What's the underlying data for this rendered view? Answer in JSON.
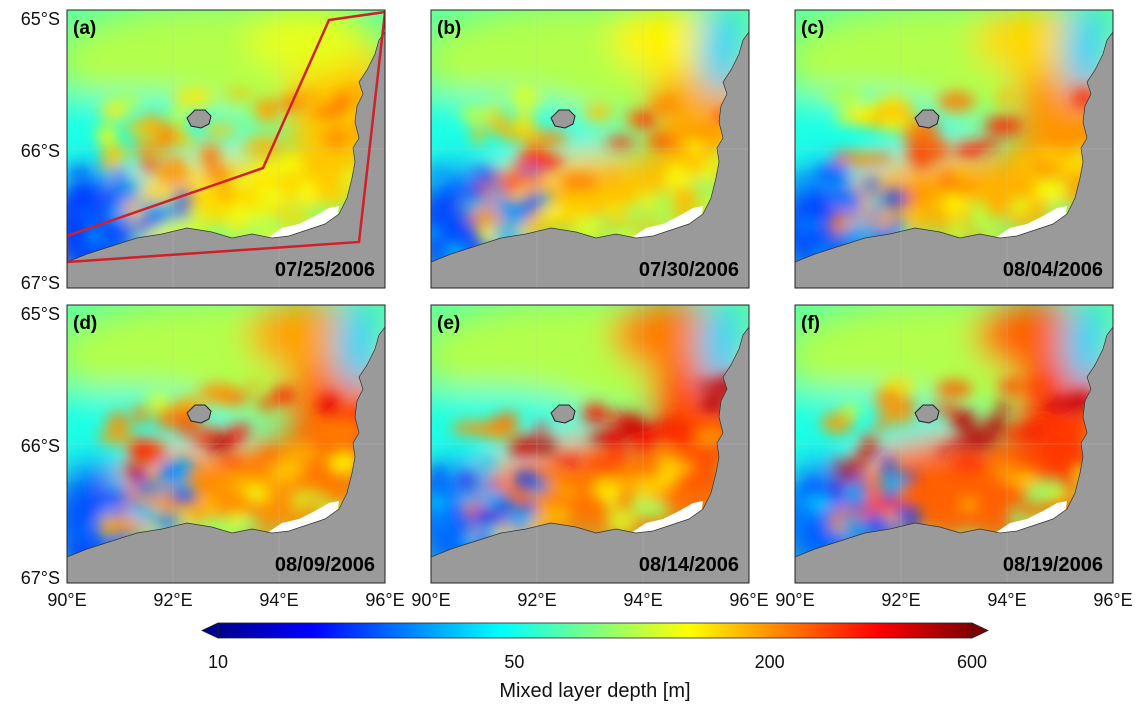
{
  "panels": [
    {
      "letter": "(a)",
      "date": "07/25/2006",
      "stage": 0.0,
      "show_region": true
    },
    {
      "letter": "(b)",
      "date": "07/30/2006",
      "stage": 0.2,
      "show_region": false
    },
    {
      "letter": "(c)",
      "date": "08/04/2006",
      "stage": 0.35,
      "show_region": false
    },
    {
      "letter": "(d)",
      "date": "08/09/2006",
      "stage": 0.65,
      "show_region": false
    },
    {
      "letter": "(e)",
      "date": "08/14/2006",
      "stage": 0.85,
      "show_region": false
    },
    {
      "letter": "(f)",
      "date": "08/19/2006",
      "stage": 1.0,
      "show_region": false
    }
  ],
  "lat_ticks": [
    "65°S",
    "66°S",
    "67°S"
  ],
  "lon_ticks": [
    "90°E",
    "92°E",
    "94°E",
    "96°E"
  ],
  "colorbar": {
    "label": "Mixed layer depth [m]",
    "scale": "log",
    "min": 10,
    "max": 600,
    "tick_values": [
      10,
      50,
      200,
      600
    ],
    "tick_labels": [
      "10",
      "50",
      "200",
      "600"
    ],
    "colormap": "jet"
  },
  "colors": {
    "land": "#9a9a9a",
    "ice_shelf": "#ffffff",
    "region_outline": "#d0202a",
    "grid": "#c8c8c8"
  }
}
